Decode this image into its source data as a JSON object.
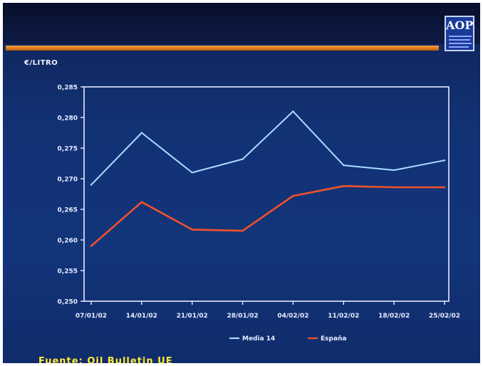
{
  "header": {
    "logo_text": "AOP"
  },
  "footer": {
    "source": "Fuente: Oil Bulletin UE"
  },
  "colors": {
    "background": "#12347a",
    "accent_rule": "#e07a1e",
    "series_media": "#a9dcff",
    "series_espana": "#f0522a",
    "source_text": "#ffea3a"
  },
  "chart_data": {
    "type": "line",
    "ylabel": "€/LITRO",
    "ylim": [
      0.25,
      0.285
    ],
    "yticks": [
      "0,250",
      "0,255",
      "0,260",
      "0,265",
      "0,270",
      "0,275",
      "0,280",
      "0,285"
    ],
    "ytick_values": [
      0.25,
      0.255,
      0.26,
      0.265,
      0.27,
      0.275,
      0.28,
      0.285
    ],
    "categories": [
      "07/01/02",
      "14/01/02",
      "21/01/02",
      "28/01/02",
      "04/02/02",
      "11/02/02",
      "18/02/02",
      "25/02/02"
    ],
    "series": [
      {
        "name": "Media 14",
        "color": "#a9dcff",
        "values": [
          0.269,
          0.2775,
          0.271,
          0.2732,
          0.281,
          0.2722,
          0.2714,
          0.273
        ]
      },
      {
        "name": "España",
        "color": "#f0522a",
        "values": [
          0.259,
          0.2662,
          0.2617,
          0.2615,
          0.2672,
          0.2688,
          0.2686,
          0.2686
        ]
      }
    ],
    "grid": false,
    "legend_position": "bottom"
  }
}
